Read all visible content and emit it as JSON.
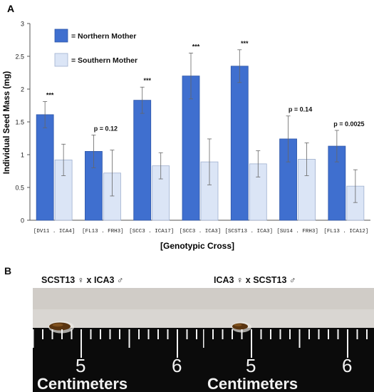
{
  "panel_a_label": "A",
  "panel_b_label": "B",
  "chart_data": {
    "type": "bar",
    "title": "",
    "ylabel": "Individual Seed Mass (mg)",
    "xlabel": "[Genotypic Cross]",
    "ylim": [
      0,
      3
    ],
    "yticks": [
      "0",
      "0.5",
      "1",
      "1.5",
      "2",
      "2.5",
      "3"
    ],
    "categories": [
      "[DV11 . ICA4]",
      "[FL13 . FRH3]",
      "[SCC3 . ICA17]",
      "[SCC3 . ICA3]",
      "[SCST13 . ICA3]",
      "[SU14 . FRH3]",
      "[FL13 . ICA12]"
    ],
    "series": [
      {
        "name": "= Northern Mother",
        "color": "#3f6fcf",
        "values": [
          1.61,
          1.05,
          1.83,
          2.2,
          2.35,
          1.24,
          1.13
        ],
        "errors": [
          0.2,
          0.25,
          0.2,
          0.35,
          0.25,
          0.35,
          0.24
        ]
      },
      {
        "name": "= Southern Mother",
        "color": "#dbe5f6",
        "values": [
          0.92,
          0.72,
          0.83,
          0.89,
          0.86,
          0.93,
          0.52
        ],
        "errors": [
          0.24,
          0.35,
          0.2,
          0.35,
          0.2,
          0.25,
          0.25
        ]
      }
    ],
    "annotations": [
      "***",
      "p = 0.12",
      "***",
      "***",
      "***",
      "p = 0.14",
      "p = 0.0025"
    ],
    "legend_position": "top-left",
    "grid": false
  },
  "photos": [
    {
      "caption": "SCST13 ♀ x ICA3 ♂",
      "ruler_numbers": [
        "5",
        "6"
      ],
      "ruler_label": "Centimeters"
    },
    {
      "caption": "ICA3 ♀ x SCST13 ♂",
      "ruler_numbers": [
        "5",
        "6"
      ],
      "ruler_label": "Centimeters"
    }
  ]
}
